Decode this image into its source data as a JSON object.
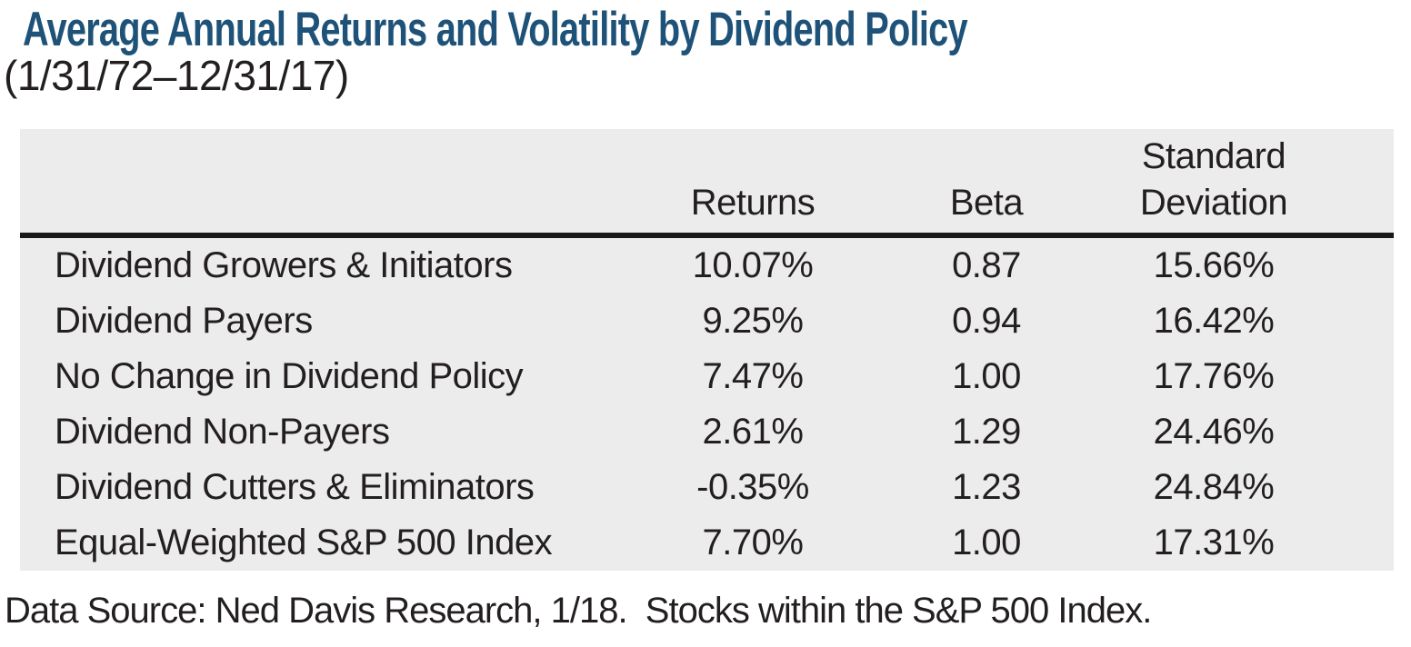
{
  "page": {
    "title": "Average Annual Returns and Volatility by Dividend Policy",
    "subtitle": "(1/31/72–12/31/17)",
    "source_note": "Data Source: Ned Davis Research, 1/18.  Stocks within the S&P 500 Index."
  },
  "table_headers": {
    "label_col": "",
    "returns": "Returns",
    "beta": "Beta",
    "std_dev_line1": "Standard",
    "std_dev_line2": "Deviation"
  },
  "chart_data": {
    "type": "table",
    "title": "Average Annual Returns and Volatility by Dividend Policy",
    "subtitle": "(1/31/72–12/31/17)",
    "columns": [
      "Returns",
      "Beta",
      "Standard Deviation"
    ],
    "categories": [
      "Dividend Growers & Initiators",
      "Dividend Payers",
      "No Change in Dividend Policy",
      "Dividend Non-Payers",
      "Dividend Cutters & Eliminators",
      "Equal-Weighted S&P 500 Index"
    ],
    "series": [
      {
        "name": "Returns",
        "values": [
          "10.07%",
          "9.25%",
          "7.47%",
          "2.61%",
          "-0.35%",
          "7.70%"
        ]
      },
      {
        "name": "Beta",
        "values": [
          "0.87",
          "0.94",
          "1.00",
          "1.29",
          "1.23",
          "1.00"
        ]
      },
      {
        "name": "Standard Deviation",
        "values": [
          "15.66%",
          "16.42%",
          "17.76%",
          "24.46%",
          "24.84%",
          "17.31%"
        ]
      }
    ],
    "source": "Data Source: Ned Davis Research, 1/18.  Stocks within the S&P 500 Index."
  },
  "colors": {
    "title_blue": "#1E5278",
    "table_background": "#EDECEC",
    "text": "#231F20",
    "rule_black": "#1A1718"
  }
}
